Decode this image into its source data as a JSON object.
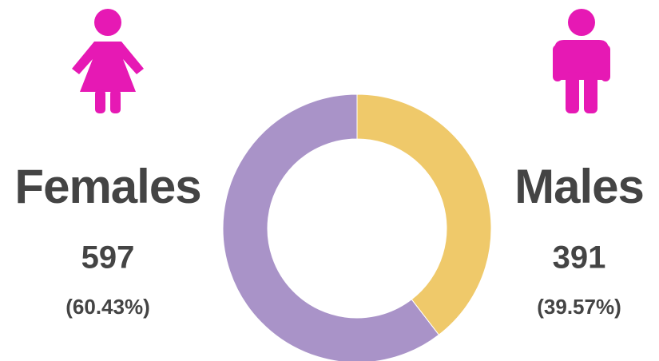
{
  "chart_data": {
    "type": "donut",
    "categories": [
      "Females",
      "Males"
    ],
    "values": [
      597,
      391
    ],
    "percentages": [
      60.43,
      39.57
    ],
    "percentage_labels": [
      "(60.43%)",
      "(39.57%)"
    ],
    "colors": [
      "#a993c8",
      "#efc96a"
    ]
  }
}
